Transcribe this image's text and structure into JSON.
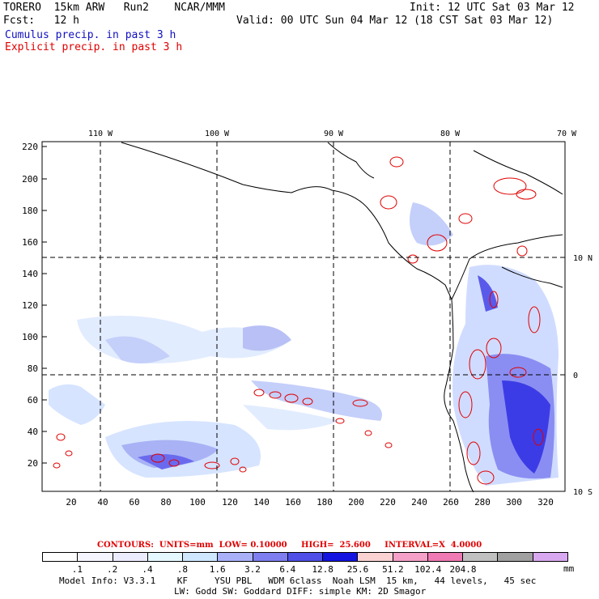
{
  "header": {
    "model": "TORERO  15km ARW   Run2    NCAR/MMM",
    "init": "Init: 12 UTC Sat 03 Mar 12",
    "fcst": "Fcst:   12 h",
    "valid": "Valid: 00 UTC Sun 04 Mar 12 (18 CST Sat 03 Mar 12)",
    "cumulus_label": "Cumulus precip. in past 3 h",
    "explicit_label": "Explicit precip. in past 3 h",
    "cumulus_color": "#1010c0",
    "explicit_color": "#e00000"
  },
  "map": {
    "top_lon_labels": [
      "110 W",
      "100 W",
      "90 W",
      "80 W",
      "70 W"
    ],
    "right_lat_labels": [
      "10 N",
      "0",
      "10 S"
    ],
    "left_y_labels": [
      "220",
      "200",
      "180",
      "160",
      "140",
      "120",
      "100",
      "80",
      "60",
      "40",
      "20"
    ],
    "bottom_x_labels": [
      "20",
      "40",
      "60",
      "80",
      "100",
      "120",
      "140",
      "160",
      "180",
      "200",
      "220",
      "240",
      "260",
      "280",
      "300",
      "320"
    ]
  },
  "colorbar": {
    "contours_text": "CONTOURS:  UNITS=mm  LOW= 0.10000     HIGH=  25.600     INTERVAL=X  4.0000",
    "colors": [
      "#ffffff",
      "#f5f5ff",
      "#ececff",
      "#e6f8ff",
      "#d0e8ff",
      "#aab0f8",
      "#7e7ef0",
      "#5050e8",
      "#1414e0",
      "#fad2d2",
      "#f5a0c8",
      "#f07ab4",
      "#c0c0c0",
      "#a0a0a0",
      "#d8a8f0"
    ],
    "labels": [
      ".1",
      ".2",
      ".4",
      ".8",
      "1.6",
      "3.2",
      "6.4",
      "12.8",
      "25.6",
      "51.2",
      "102.4",
      "204.8"
    ],
    "units": "mm"
  },
  "footer": {
    "line1": "Model Info: V3.3.1    KF     YSU PBL   WDM 6class  Noah LSM  15 km,   44 levels,   45 sec",
    "line2": "LW: Godd SW: Goddard DIFF: simple KM: 2D Smagor"
  }
}
